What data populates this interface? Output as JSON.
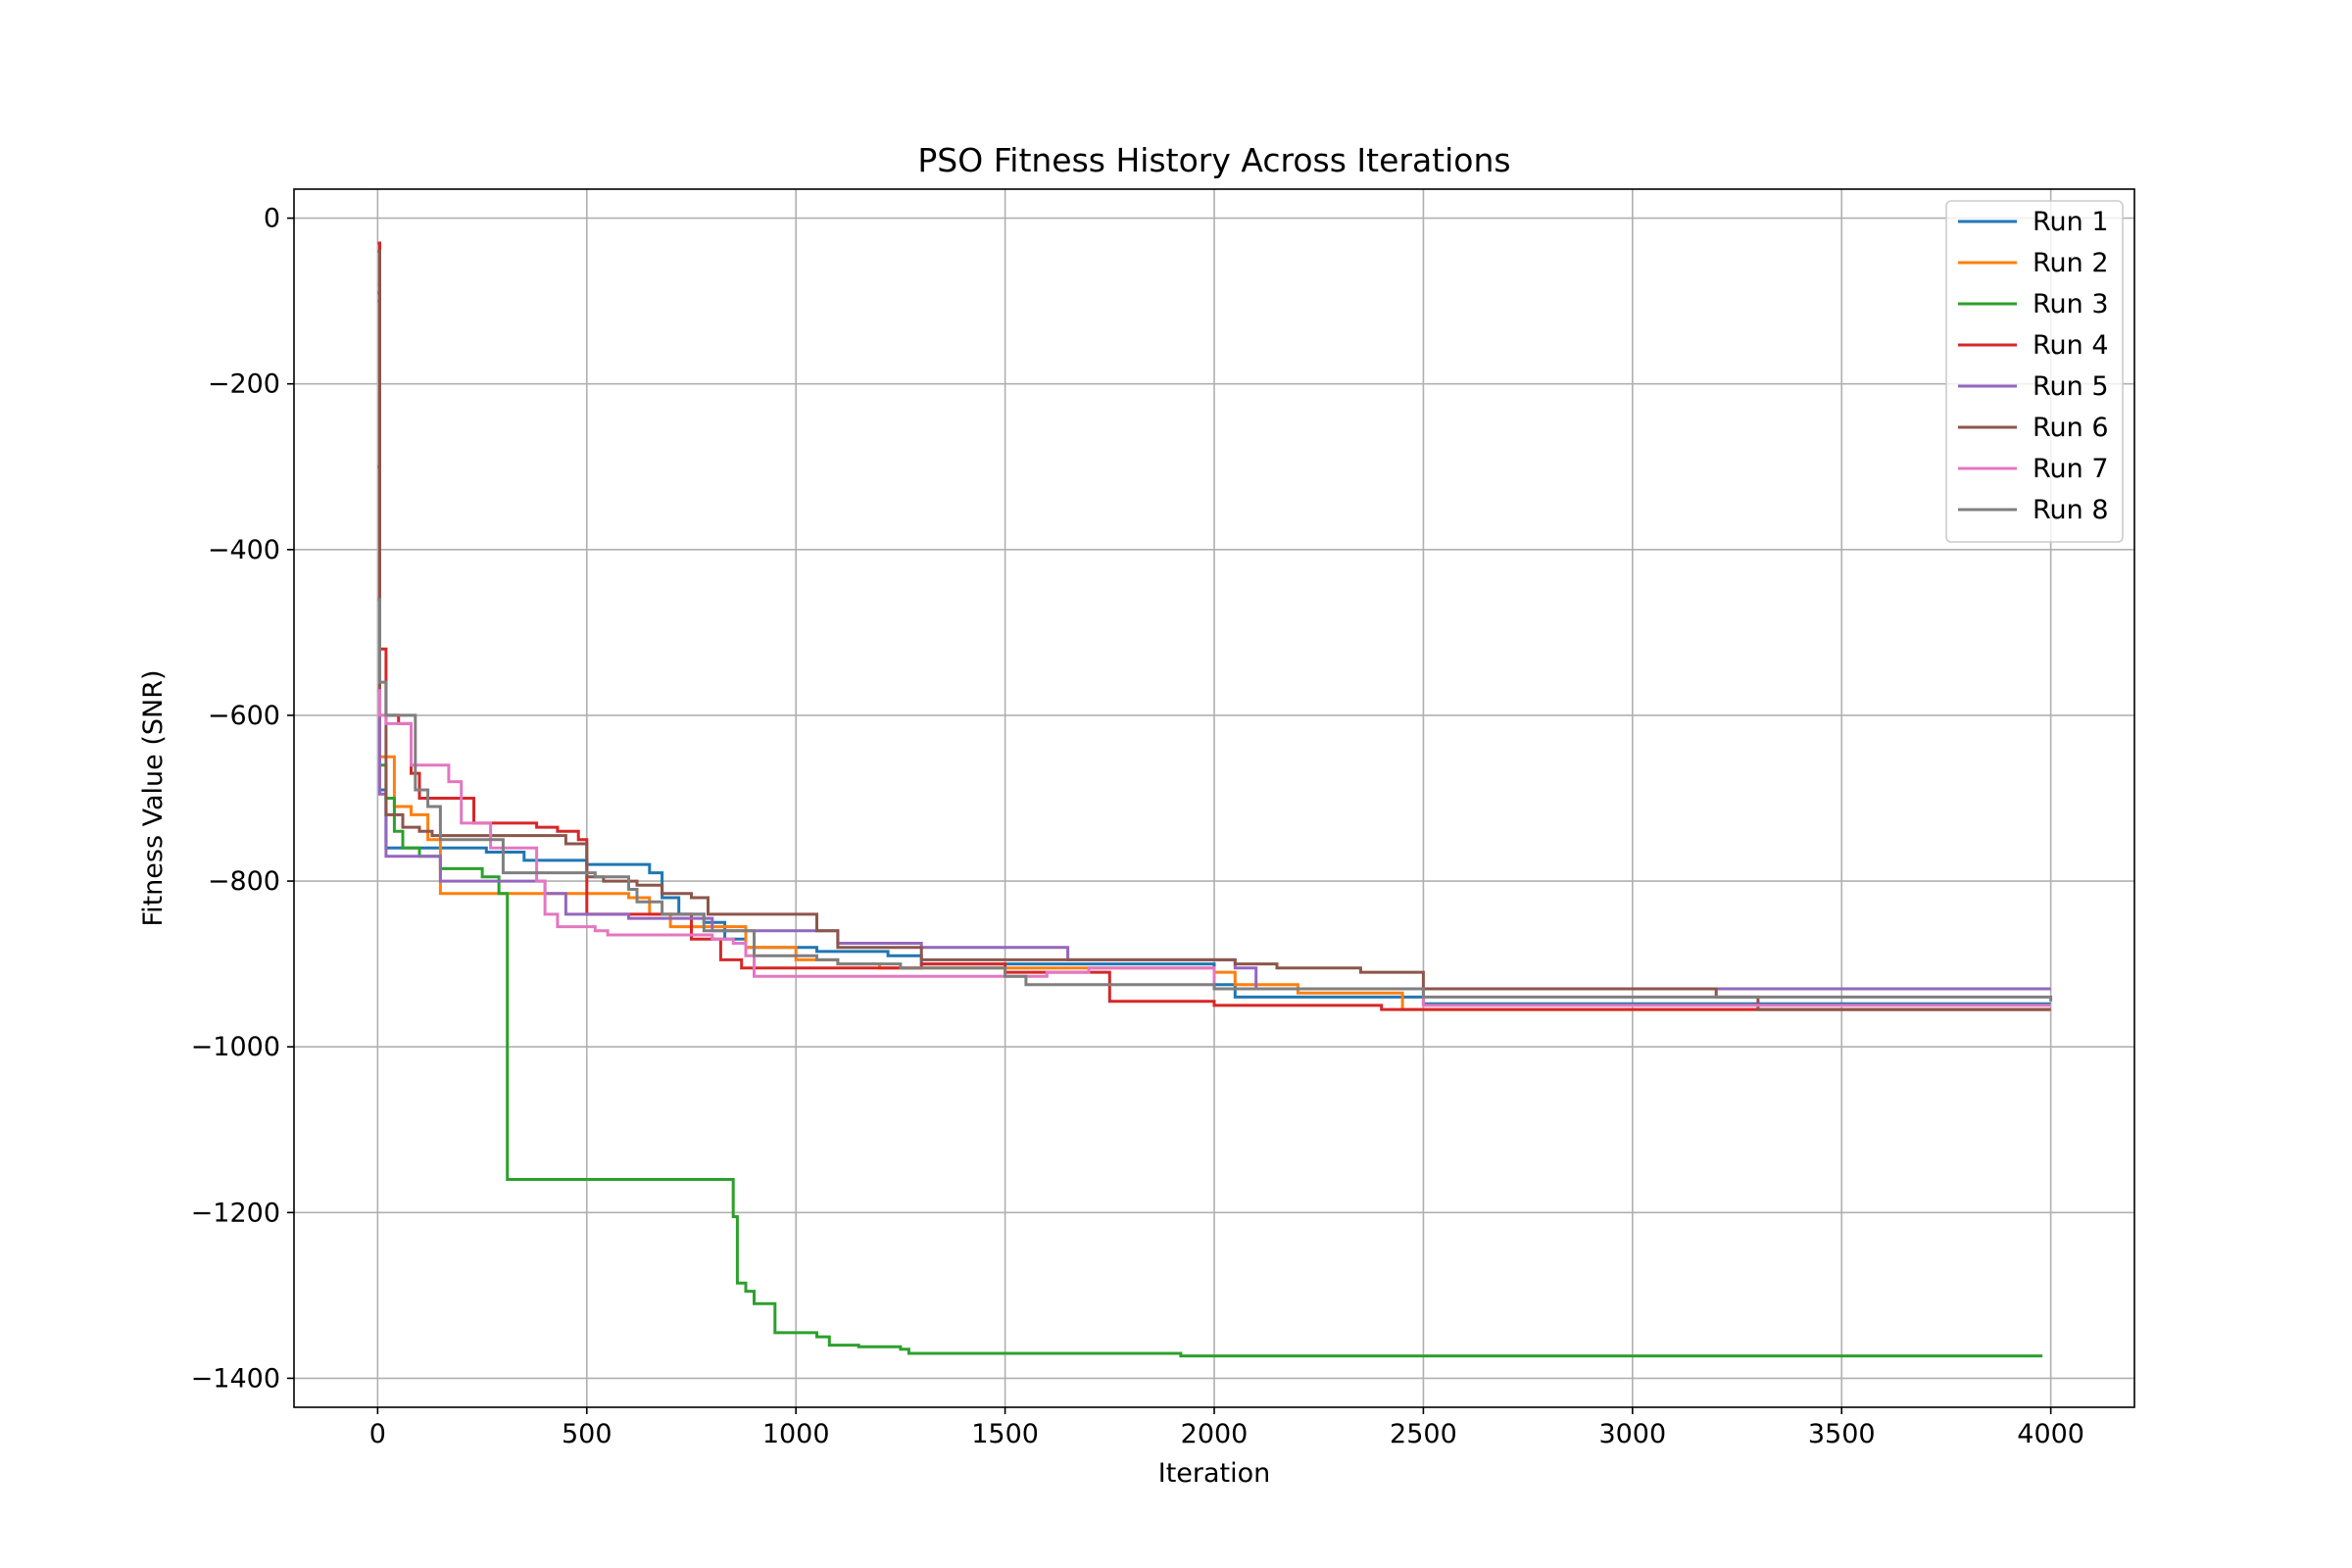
{
  "chart_data": {
    "type": "line",
    "title": "PSO Fitness History Across Iterations",
    "xlabel": "Iteration",
    "ylabel": "Fitness Value (SNR)",
    "xlim": [
      -200,
      4200
    ],
    "ylim": [
      -1435,
      35
    ],
    "xticks": [
      0,
      500,
      1000,
      1500,
      2000,
      2500,
      3000,
      3500,
      4000
    ],
    "yticks": [
      0,
      -200,
      -400,
      -600,
      -800,
      -1000,
      -1200,
      -1400
    ],
    "xtick_labels": [
      "0",
      "500",
      "1000",
      "1500",
      "2000",
      "2500",
      "3000",
      "3500",
      "4000"
    ],
    "ytick_labels": [
      "0",
      "−200",
      "−400",
      "−600",
      "−800",
      "−1000",
      "−1200",
      "−1400"
    ],
    "grid": true,
    "legend_position": "top-right",
    "series": [
      {
        "name": "Run 1",
        "color": "#1f77b4",
        "x": [
          0,
          5,
          20,
          260,
          350,
          500,
          650,
          680,
          720,
          780,
          830,
          880,
          1000,
          1050,
          1220,
          1300,
          2000,
          2050,
          2500,
          4000
        ],
        "y": [
          -90,
          -690,
          -760,
          -765,
          -775,
          -780,
          -790,
          -820,
          -840,
          -850,
          -870,
          -880,
          -880,
          -885,
          -890,
          -900,
          -925,
          -940,
          -948,
          -948
        ]
      },
      {
        "name": "Run 2",
        "color": "#ff7f0e",
        "x": [
          0,
          5,
          40,
          80,
          120,
          150,
          550,
          600,
          650,
          700,
          880,
          1000,
          1100,
          1200,
          2000,
          2050,
          2200,
          2450,
          4000
        ],
        "y": [
          -80,
          -650,
          -710,
          -720,
          -750,
          -815,
          -815,
          -820,
          -840,
          -855,
          -880,
          -895,
          -900,
          -905,
          -910,
          -925,
          -935,
          -955,
          -955
        ]
      },
      {
        "name": "Run 3",
        "color": "#2ca02c",
        "x": [
          0,
          5,
          20,
          40,
          60,
          100,
          150,
          250,
          290,
          305,
          310,
          840,
          850,
          860,
          880,
          900,
          950,
          1050,
          1080,
          1150,
          1250,
          1270,
          1900,
          1920,
          3980
        ],
        "y": [
          -300,
          -660,
          -700,
          -740,
          -760,
          -770,
          -785,
          -795,
          -815,
          -815,
          -1160,
          -1160,
          -1205,
          -1285,
          -1295,
          -1310,
          -1345,
          -1350,
          -1360,
          -1362,
          -1365,
          -1370,
          -1370,
          -1373,
          -1373
        ]
      },
      {
        "name": "Run 4",
        "color": "#d62728",
        "x": [
          0,
          5,
          20,
          50,
          80,
          100,
          130,
          230,
          380,
          430,
          480,
          500,
          560,
          750,
          820,
          870,
          1000,
          1300,
          1500,
          1750,
          2000,
          2400,
          4000
        ],
        "y": [
          -30,
          -520,
          -600,
          -610,
          -670,
          -700,
          -700,
          -730,
          -735,
          -740,
          -750,
          -840,
          -840,
          -870,
          -895,
          -905,
          -905,
          -900,
          -910,
          -945,
          -950,
          -955,
          -955
        ]
      },
      {
        "name": "Run 5",
        "color": "#9467bd",
        "x": [
          0,
          5,
          20,
          80,
          150,
          400,
          450,
          600,
          800,
          1000,
          1100,
          1300,
          1650,
          2050,
          2100,
          3000,
          4000
        ],
        "y": [
          -100,
          -695,
          -770,
          -770,
          -800,
          -815,
          -840,
          -845,
          -860,
          -860,
          -875,
          -880,
          -895,
          -905,
          -930,
          -930,
          -930
        ]
      },
      {
        "name": "Run 6",
        "color": "#8c564b",
        "x": [
          0,
          5,
          20,
          60,
          100,
          130,
          190,
          270,
          450,
          500,
          540,
          560,
          620,
          680,
          750,
          790,
          1000,
          1050,
          1100,
          1300,
          2000,
          2050,
          2150,
          2350,
          2500,
          2900,
          3200,
          3300,
          4000
        ],
        "y": [
          -40,
          -600,
          -720,
          -735,
          -740,
          -745,
          -745,
          -745,
          -755,
          -795,
          -800,
          -800,
          -805,
          -815,
          -820,
          -840,
          -840,
          -860,
          -880,
          -895,
          -895,
          -900,
          -905,
          -910,
          -930,
          -930,
          -940,
          -955,
          -955
        ]
      },
      {
        "name": "Run 7",
        "color": "#e377c2",
        "x": [
          0,
          5,
          20,
          80,
          170,
          200,
          270,
          380,
          400,
          430,
          520,
          550,
          700,
          800,
          850,
          880,
          900,
          1500,
          1600,
          1700,
          2000,
          2500,
          4000
        ],
        "y": [
          -570,
          -600,
          -610,
          -660,
          -680,
          -730,
          -760,
          -800,
          -840,
          -855,
          -860,
          -865,
          -865,
          -870,
          -875,
          -890,
          -915,
          -915,
          -910,
          -905,
          -930,
          -950,
          -950
        ]
      },
      {
        "name": "Run 8",
        "color": "#7f7f7f",
        "x": [
          0,
          5,
          20,
          60,
          90,
          120,
          150,
          300,
          450,
          520,
          600,
          620,
          680,
          780,
          900,
          1050,
          1100,
          1250,
          1500,
          1550,
          2000,
          2500,
          4000
        ],
        "y": [
          -460,
          -560,
          -600,
          -600,
          -690,
          -710,
          -750,
          -790,
          -790,
          -795,
          -810,
          -825,
          -840,
          -860,
          -890,
          -895,
          -900,
          -905,
          -915,
          -925,
          -930,
          -940,
          -945
        ]
      }
    ]
  }
}
